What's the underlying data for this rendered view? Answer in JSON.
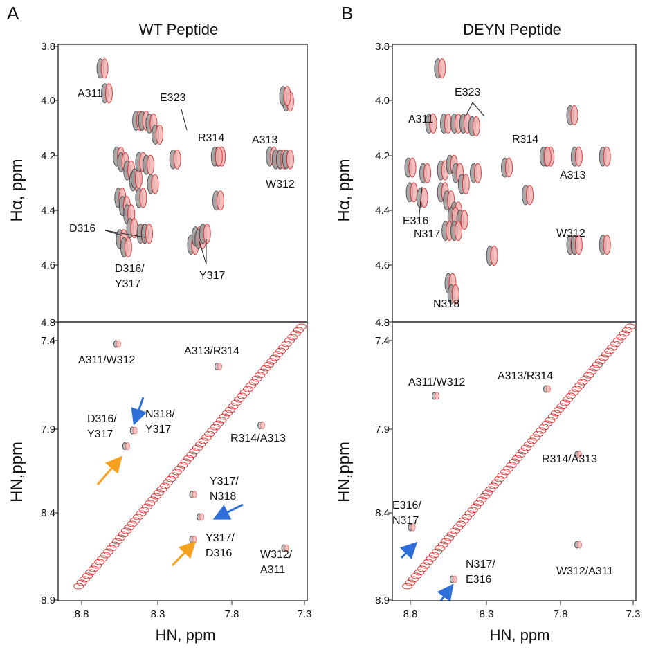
{
  "colors": {
    "dark_peak": "#3a3a3a",
    "red_peak": "#d42020",
    "light_red": "#f07070",
    "blue_arrow": "#2e6fd9",
    "orange_arrow": "#f5a01e"
  },
  "chart_data": [
    {
      "type": "scatter",
      "panel": "A",
      "title": "WT Peptide",
      "subplots": [
        {
          "name": "top",
          "ylabel": "Hα, ppm",
          "ylim": [
            4.8,
            3.8
          ],
          "yticks": [
            "3.8",
            "4.0",
            "4.2",
            "4.4",
            "4.6",
            "4.8"
          ],
          "annotations": [
            "A311",
            "E323",
            "R314",
            "A313",
            "W312",
            "D316",
            "D316/",
            "Y317",
            "Y317"
          ],
          "peaks": [
            [
              8.66,
              3.88
            ],
            [
              8.63,
              3.97
            ],
            [
              8.42,
              4.07
            ],
            [
              8.38,
              4.07
            ],
            [
              8.33,
              4.08
            ],
            [
              8.29,
              4.12
            ],
            [
              8.17,
              4.21
            ],
            [
              7.87,
              4.2
            ],
            [
              7.89,
              4.2
            ],
            [
              7.52,
              4.2
            ],
            [
              7.48,
              4.21
            ],
            [
              7.45,
              4.21
            ],
            [
              7.41,
              4.21
            ],
            [
              7.41,
              4.0
            ],
            [
              7.43,
              3.98
            ],
            [
              8.55,
              4.2
            ],
            [
              8.52,
              4.22
            ],
            [
              8.48,
              4.25
            ],
            [
              8.44,
              4.29
            ],
            [
              8.54,
              4.35
            ],
            [
              8.51,
              4.38
            ],
            [
              8.48,
              4.41
            ],
            [
              8.46,
              4.46
            ],
            [
              8.39,
              4.48
            ],
            [
              8.36,
              4.48
            ],
            [
              8.53,
              4.5
            ],
            [
              8.5,
              4.53
            ],
            [
              8.43,
              4.28
            ],
            [
              8.4,
              4.22
            ],
            [
              8.35,
              4.23
            ],
            [
              8.32,
              4.3
            ],
            [
              8.4,
              4.35
            ],
            [
              8.05,
              4.52
            ],
            [
              8.02,
              4.49
            ],
            [
              8.0,
              4.5
            ],
            [
              7.97,
              4.48
            ],
            [
              7.88,
              4.36
            ]
          ]
        },
        {
          "name": "bottom",
          "ylabel": "HN,ppm",
          "ylim": [
            8.9,
            7.3
          ],
          "yticks": [
            "7.4",
            "7.9",
            "8.4",
            "8.9"
          ],
          "annotations": [
            "A311/W312",
            "A313/R314",
            "D316/",
            "Y317",
            "N318/",
            "Y317",
            "R314/A313",
            "Y317/",
            "N318",
            "Y317/",
            "D316",
            "W312/",
            "A311"
          ],
          "cross_peaks": [
            [
              8.56,
              7.42
            ],
            [
              7.88,
              7.55
            ],
            [
              8.5,
              8.01
            ],
            [
              8.45,
              7.92
            ],
            [
              7.59,
              7.89
            ],
            [
              8.05,
              8.29
            ],
            [
              8.0,
              8.42
            ],
            [
              8.05,
              8.55
            ],
            [
              7.43,
              8.6
            ]
          ],
          "diagonal": {
            "from": 8.82,
            "to": 7.32
          }
        }
      ],
      "xlabel": "HN, ppm",
      "xlim": [
        8.9,
        7.3
      ],
      "xticks": [
        "8.8",
        "8.3",
        "7.8",
        "7.3"
      ]
    },
    {
      "type": "scatter",
      "panel": "B",
      "title": "DEYN Peptide",
      "subplots": [
        {
          "name": "top",
          "ylabel": "Hα, ppm",
          "ylim": [
            4.8,
            3.8
          ],
          "yticks": [
            "3.8",
            "4.0",
            "4.2",
            "4.4",
            "4.6",
            "4.8"
          ],
          "annotations": [
            "E323",
            "A311",
            "R314",
            "A313",
            "E316",
            "N317",
            "W312",
            "N318"
          ],
          "peaks": [
            [
              8.6,
              3.88
            ],
            [
              8.66,
              4.08
            ],
            [
              8.56,
              4.08
            ],
            [
              8.49,
              4.08
            ],
            [
              8.43,
              4.08
            ],
            [
              8.37,
              4.09
            ],
            [
              7.87,
              4.2
            ],
            [
              7.89,
              4.2
            ],
            [
              8.15,
              4.24
            ],
            [
              8.01,
              4.34
            ],
            [
              7.71,
              4.05
            ],
            [
              7.68,
              4.2
            ],
            [
              7.49,
              4.2
            ],
            [
              8.8,
              4.24
            ],
            [
              8.7,
              4.26
            ],
            [
              8.79,
              4.33
            ],
            [
              8.72,
              4.35
            ],
            [
              8.58,
              4.25
            ],
            [
              8.52,
              4.23
            ],
            [
              8.48,
              4.26
            ],
            [
              8.44,
              4.3
            ],
            [
              8.36,
              4.26
            ],
            [
              8.58,
              4.33
            ],
            [
              8.54,
              4.36
            ],
            [
              8.49,
              4.4
            ],
            [
              8.51,
              4.42
            ],
            [
              8.45,
              4.43
            ],
            [
              8.55,
              4.47
            ],
            [
              8.49,
              4.47
            ],
            [
              8.25,
              4.56
            ],
            [
              7.71,
              4.52
            ],
            [
              7.68,
              4.52
            ],
            [
              7.49,
              4.52
            ],
            [
              8.53,
              4.66
            ],
            [
              8.51,
              4.7
            ]
          ]
        },
        {
          "name": "bottom",
          "ylabel": "HN,ppm",
          "ylim": [
            8.9,
            7.3
          ],
          "yticks": [
            "7.4",
            "7.9",
            "8.4",
            "8.9"
          ],
          "annotations": [
            "A311/W312",
            "A313/R314",
            "R314/A313",
            "E316/",
            "N317",
            "N317/",
            "E316",
            "W312/A311"
          ],
          "cross_peaks": [
            [
              8.63,
              7.72
            ],
            [
              7.88,
              7.68
            ],
            [
              7.67,
              8.06
            ],
            [
              8.79,
              8.48
            ],
            [
              8.51,
              8.78
            ],
            [
              7.67,
              8.58
            ]
          ],
          "diagonal": {
            "from": 8.82,
            "to": 7.32
          }
        }
      ],
      "xlabel": "HN, ppm",
      "xlim": [
        8.9,
        7.3
      ],
      "xticks": [
        "8.8",
        "8.3",
        "7.8",
        "7.3"
      ]
    }
  ]
}
